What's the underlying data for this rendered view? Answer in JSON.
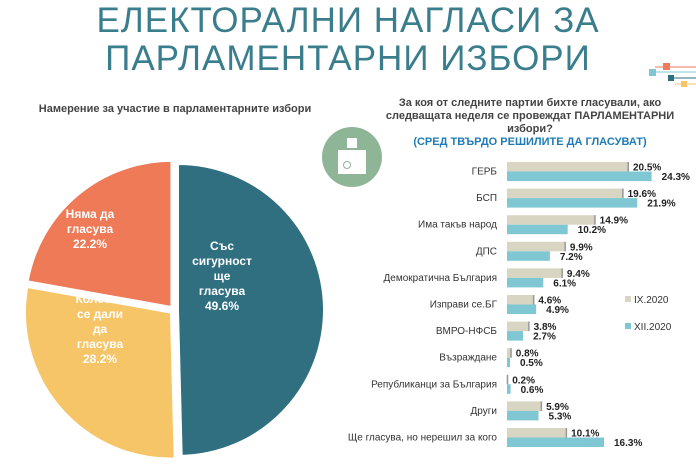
{
  "title": "ЕЛЕКТОРАЛНИ НАГЛАСИ ЗА ПАРЛАМЕНТАРНИ ИЗБОРИ",
  "chart_data": [
    {
      "type": "pie",
      "title": "Намерение за участие в парламентарните избори",
      "slices": [
        {
          "label": "Със сигурност ще гласува",
          "value": 49.6,
          "display": "49.6%",
          "color": "#2f6f80"
        },
        {
          "label": "Колебае се дали да гласува",
          "value": 28.2,
          "display": "28.2%",
          "color": "#f6c567"
        },
        {
          "label": "Няма да гласува",
          "value": 22.2,
          "display": "22.2%",
          "color": "#ee7a57"
        }
      ]
    },
    {
      "type": "bar",
      "orientation": "horizontal",
      "title": "За коя от следните партии бихте гласували, ако следващата неделя се провеждат ПАРЛАМЕНТАРНИ избори?",
      "subtitle": "(СРЕД ТВЪРДО РЕШИЛИТЕ ДА ГЛАСУВАТ)",
      "legend": "right",
      "categories": [
        "ГЕРБ",
        "БСП",
        "Има такъв народ",
        "ДПС",
        "Демократична България",
        "Изправи се.БГ",
        "ВМРО-НФСБ",
        "Възраждане",
        "Републиканци за България",
        "Други",
        "Ще гласува, но нерешил за кого"
      ],
      "series": [
        {
          "name": "IX.2020",
          "color": "#d9d5c3",
          "values": [
            20.5,
            19.6,
            14.9,
            9.9,
            9.4,
            4.6,
            3.8,
            0.8,
            0.2,
            5.9,
            10.1
          ]
        },
        {
          "name": "XII.2020",
          "color": "#7fc7d3",
          "values": [
            24.3,
            21.9,
            10.2,
            7.2,
            6.1,
            4.9,
            2.7,
            0.5,
            0.6,
            5.3,
            16.3
          ]
        }
      ]
    }
  ]
}
